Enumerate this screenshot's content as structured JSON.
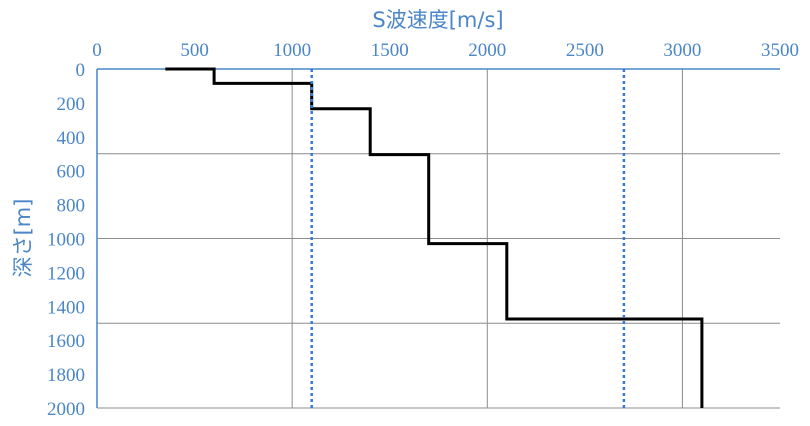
{
  "chart_data": {
    "type": "line",
    "title": "",
    "xlabel": "S波速度[m/s]",
    "ylabel": "深さ[m]",
    "x_axis_position": "top",
    "y_axis_inverted": true,
    "xlim": [
      0,
      3500
    ],
    "ylim": [
      0,
      2000
    ],
    "x_ticks": [
      0,
      500,
      1000,
      1500,
      2000,
      2500,
      3000,
      3500
    ],
    "y_ticks": [
      0,
      200,
      400,
      600,
      800,
      1000,
      1200,
      1400,
      1600,
      1800,
      2000
    ],
    "x_gridlines": [
      1000,
      2000,
      3000
    ],
    "y_gridlines": [
      500,
      1000,
      1500,
      2000
    ],
    "series": [
      {
        "style": "solid",
        "color": "#000000",
        "points": [
          [
            350,
            0
          ],
          [
            600,
            0
          ],
          [
            600,
            85
          ],
          [
            1100,
            85
          ],
          [
            1100,
            235
          ],
          [
            1400,
            235
          ],
          [
            1400,
            505
          ],
          [
            1700,
            505
          ],
          [
            1700,
            1030
          ],
          [
            2100,
            1030
          ],
          [
            2100,
            1475
          ],
          [
            3100,
            1475
          ],
          [
            3100,
            2000
          ]
        ]
      },
      {
        "style": "dotted",
        "color": "#3a78d8",
        "points": [
          [
            1100,
            0
          ],
          [
            1100,
            2000
          ]
        ]
      },
      {
        "style": "dotted",
        "color": "#3a78d8",
        "points": [
          [
            2700,
            0
          ],
          [
            2700,
            2000
          ]
        ]
      }
    ]
  }
}
